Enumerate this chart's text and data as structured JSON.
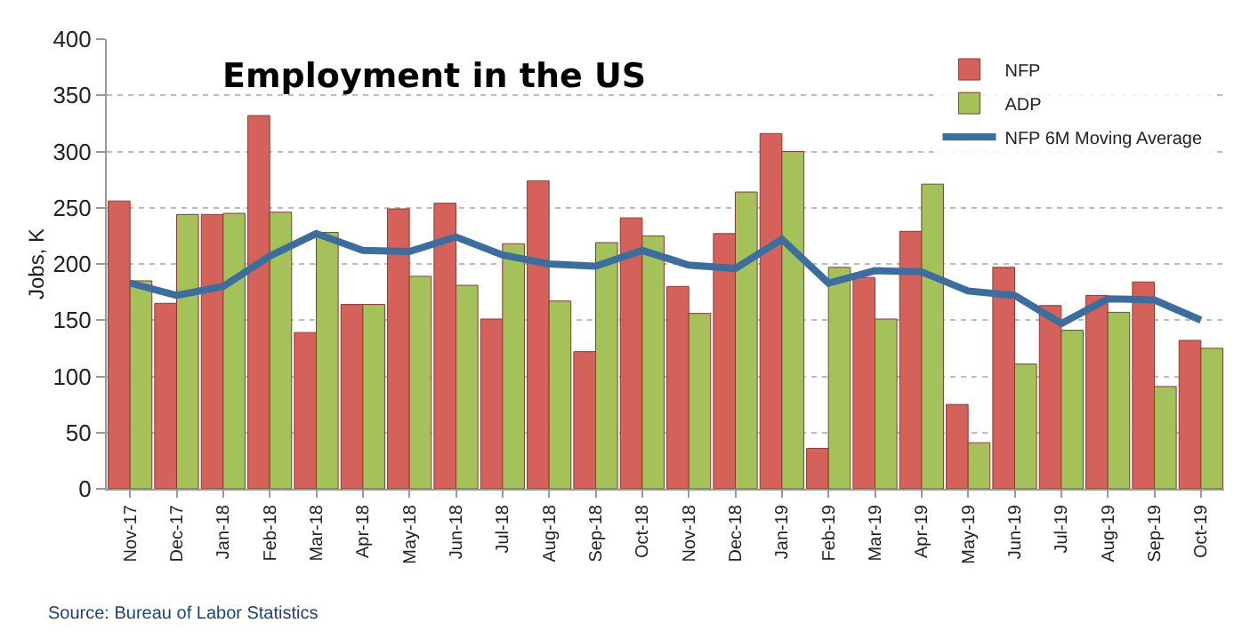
{
  "chart_data": {
    "type": "bar",
    "title": "Employment in the US",
    "ylabel": "Jobs, K",
    "categories": [
      "Nov-17",
      "Dec-17",
      "Jan-18",
      "Feb-18",
      "Mar-18",
      "Apr-18",
      "May-18",
      "Jun-18",
      "Jul-18",
      "Aug-18",
      "Sep-18",
      "Oct-18",
      "Nov-18",
      "Dec-18",
      "Jan-19",
      "Feb-19",
      "Mar-19",
      "Apr-19",
      "May-19",
      "Jun-19",
      "Jul-19",
      "Aug-19",
      "Sep-19",
      "Oct-19"
    ],
    "series": [
      {
        "name": "NFP",
        "color": "#d4625a",
        "values": [
          256,
          165,
          244,
          332,
          139,
          164,
          249,
          254,
          151,
          274,
          122,
          241,
          180,
          227,
          316,
          36,
          188,
          229,
          75,
          197,
          163,
          172,
          184,
          132
        ]
      },
      {
        "name": "ADP",
        "color": "#a5c15a",
        "values": [
          185,
          244,
          245,
          246,
          228,
          164,
          189,
          181,
          218,
          167,
          219,
          225,
          156,
          264,
          300,
          197,
          151,
          271,
          41,
          111,
          141,
          157,
          91,
          125
        ]
      },
      {
        "name": "NFP 6M Moving Average",
        "type": "line",
        "color": "#3b6e9e",
        "values": [
          183,
          172,
          180,
          207,
          227,
          212,
          211,
          224,
          208,
          200,
          198,
          212,
          199,
          196,
          222,
          183,
          194,
          193,
          176,
          172,
          147,
          169,
          168,
          150
        ]
      }
    ],
    "ylim": [
      0,
      400
    ],
    "yticks": [
      0,
      50,
      100,
      150,
      200,
      250,
      300,
      350,
      400
    ],
    "grid": "y",
    "legend": "top right",
    "marker": "none",
    "line_style": "solid",
    "annotations": [
      "Source: Bureau of Labor Statistics"
    ]
  }
}
